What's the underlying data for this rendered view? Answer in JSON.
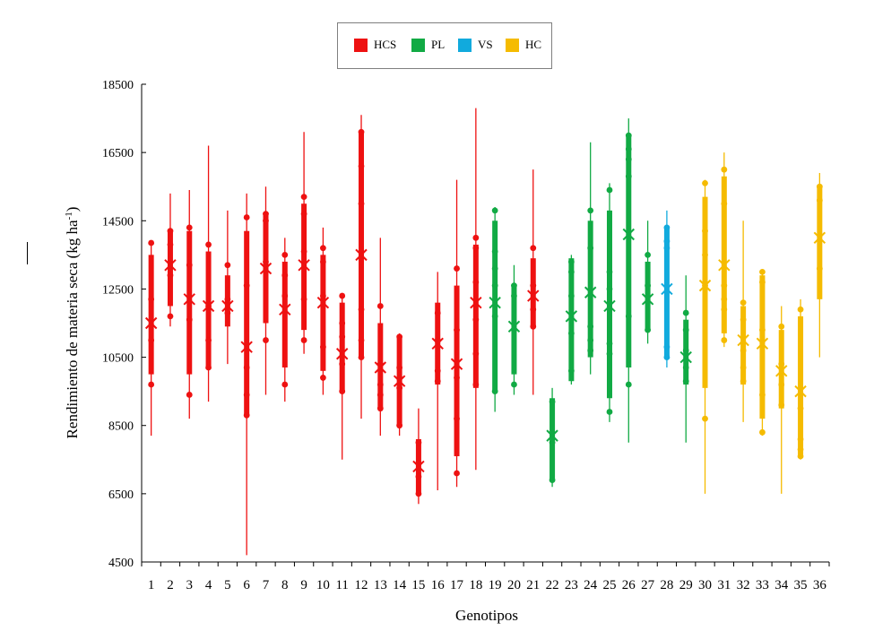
{
  "chart_data": {
    "type": "box",
    "xlabel": "Genotipos",
    "ylabel": "Rendimiento de materia seca (kg ha-1)",
    "ylabel_main": "Rendimiento de materia seca (kg ha",
    "ylabel_sup": "-1",
    "ylabel_close": ")",
    "ylim": [
      4500,
      18500
    ],
    "yticks": [
      4500,
      6500,
      8500,
      10500,
      12500,
      14500,
      16500,
      18500
    ],
    "legend": [
      {
        "name": "HCS",
        "color": "#ee1111"
      },
      {
        "name": "PL",
        "color": "#11aa44"
      },
      {
        "name": "VS",
        "color": "#11aadd"
      },
      {
        "name": "HC",
        "color": "#f5bb00"
      }
    ],
    "genotypes": [
      {
        "x": "1",
        "group": "HCS",
        "min": 8200,
        "q1": 10000,
        "q3": 13500,
        "max": 13900,
        "mean": 11500,
        "points": [
          13850,
          12200,
          11000,
          9700
        ]
      },
      {
        "x": "2",
        "group": "HCS",
        "min": 11400,
        "q1": 12000,
        "q3": 14200,
        "max": 15300,
        "mean": 13200,
        "points": [
          14200,
          13800,
          12900,
          11700
        ]
      },
      {
        "x": "3",
        "group": "HCS",
        "min": 8700,
        "q1": 10000,
        "q3": 14200,
        "max": 15400,
        "mean": 12200,
        "points": [
          14300,
          13200,
          11600,
          9400
        ]
      },
      {
        "x": "4",
        "group": "HCS",
        "min": 9200,
        "q1": 10200,
        "q3": 13600,
        "max": 16700,
        "mean": 12000,
        "points": [
          13800,
          12000,
          11000,
          10200
        ]
      },
      {
        "x": "5",
        "group": "HCS",
        "min": 10300,
        "q1": 11400,
        "q3": 12900,
        "max": 14800,
        "mean": 12000,
        "points": [
          13200,
          12200,
          11800
        ]
      },
      {
        "x": "6",
        "group": "HCS",
        "min": 4700,
        "q1": 8800,
        "q3": 14200,
        "max": 15300,
        "mean": 10800,
        "points": [
          14600,
          12600,
          10200,
          9400,
          8800
        ]
      },
      {
        "x": "7",
        "group": "HCS",
        "min": 9400,
        "q1": 11500,
        "q3": 14700,
        "max": 15500,
        "mean": 13100,
        "points": [
          14700,
          14500,
          13300,
          11000
        ]
      },
      {
        "x": "8",
        "group": "HCS",
        "min": 9200,
        "q1": 10200,
        "q3": 13300,
        "max": 14000,
        "mean": 11900,
        "points": [
          13500,
          12900,
          12300,
          9700
        ]
      },
      {
        "x": "9",
        "group": "HCS",
        "min": 10600,
        "q1": 11300,
        "q3": 15000,
        "max": 17100,
        "mean": 13200,
        "points": [
          15200,
          14700,
          13600,
          12200,
          11000
        ]
      },
      {
        "x": "10",
        "group": "HCS",
        "min": 9400,
        "q1": 10100,
        "q3": 13500,
        "max": 14300,
        "mean": 12100,
        "points": [
          13700,
          13300,
          12300,
          10800,
          9900
        ]
      },
      {
        "x": "11",
        "group": "HCS",
        "min": 7500,
        "q1": 9500,
        "q3": 12100,
        "max": 12300,
        "mean": 10600,
        "points": [
          12300,
          11500,
          11100,
          10300,
          9500
        ]
      },
      {
        "x": "12",
        "group": "HCS",
        "min": 8700,
        "q1": 10500,
        "q3": 17100,
        "max": 17600,
        "mean": 13500,
        "points": [
          17100,
          16100,
          15000,
          11900,
          11000,
          10500
        ]
      },
      {
        "x": "13",
        "group": "HCS",
        "min": 8200,
        "q1": 9000,
        "q3": 11500,
        "max": 14000,
        "mean": 10200,
        "points": [
          12000,
          10300,
          9700,
          9400,
          9000
        ]
      },
      {
        "x": "14",
        "group": "HCS",
        "min": 8200,
        "q1": 8500,
        "q3": 11100,
        "max": 11200,
        "mean": 9800,
        "points": [
          11100,
          10200,
          9900,
          9600,
          8500
        ]
      },
      {
        "x": "15",
        "group": "HCS",
        "min": 6200,
        "q1": 6500,
        "q3": 8100,
        "max": 9000,
        "mean": 7300,
        "points": [
          8000,
          7400,
          7000,
          6500
        ]
      },
      {
        "x": "16",
        "group": "HCS",
        "min": 6600,
        "q1": 9700,
        "q3": 12100,
        "max": 13000,
        "mean": 10900,
        "points": [
          11800,
          11000,
          10100,
          9800
        ]
      },
      {
        "x": "17",
        "group": "HCS",
        "min": 6700,
        "q1": 7600,
        "q3": 12600,
        "max": 15700,
        "mean": 10300,
        "points": [
          13100,
          11300,
          9900,
          8700,
          7100
        ]
      },
      {
        "x": "18",
        "group": "HCS",
        "min": 7200,
        "q1": 9600,
        "q3": 13800,
        "max": 17800,
        "mean": 12100,
        "points": [
          14000,
          13700,
          12700,
          11600,
          10600,
          9700
        ]
      },
      {
        "x": "19",
        "group": "PL",
        "min": 8900,
        "q1": 9500,
        "q3": 14500,
        "max": 14900,
        "mean": 12100,
        "points": [
          14800,
          13600,
          13100,
          12600,
          11700,
          9500
        ]
      },
      {
        "x": "20",
        "group": "PL",
        "min": 9400,
        "q1": 10000,
        "q3": 12600,
        "max": 13200,
        "mean": 11400,
        "points": [
          12600,
          12300,
          11300,
          9700
        ]
      },
      {
        "x": "21",
        "group": "HCS",
        "min": 9400,
        "q1": 11400,
        "q3": 13400,
        "max": 16000,
        "mean": 12300,
        "points": [
          13700,
          12600,
          11900,
          11400
        ]
      },
      {
        "x": "22",
        "group": "PL",
        "min": 6700,
        "q1": 6900,
        "q3": 9300,
        "max": 9600,
        "mean": 8200,
        "points": [
          9200,
          8000,
          6900
        ]
      },
      {
        "x": "23",
        "group": "PL",
        "min": 9700,
        "q1": 9800,
        "q3": 13400,
        "max": 13500,
        "mean": 11700,
        "points": [
          13300,
          13000,
          12300,
          11200,
          10100
        ]
      },
      {
        "x": "24",
        "group": "PL",
        "min": 10000,
        "q1": 10500,
        "q3": 14500,
        "max": 16800,
        "mean": 12400,
        "points": [
          14800,
          13700,
          11400,
          11000,
          10700
        ]
      },
      {
        "x": "25",
        "group": "PL",
        "min": 8600,
        "q1": 9300,
        "q3": 14800,
        "max": 15600,
        "mean": 12000,
        "points": [
          15400,
          13000,
          12500,
          10900,
          10600,
          8900
        ]
      },
      {
        "x": "26",
        "group": "PL",
        "min": 8000,
        "q1": 10200,
        "q3": 17000,
        "max": 17500,
        "mean": 14100,
        "points": [
          17000,
          16600,
          16300,
          15800,
          11700,
          9700
        ]
      },
      {
        "x": "27",
        "group": "PL",
        "min": 10900,
        "q1": 11300,
        "q3": 13300,
        "max": 14500,
        "mean": 12200,
        "points": [
          13500,
          12600,
          11300
        ]
      },
      {
        "x": "28",
        "group": "VS",
        "min": 10200,
        "q1": 10500,
        "q3": 14300,
        "max": 14800,
        "mean": 12500,
        "points": [
          14300,
          13900,
          13700,
          10800,
          10500
        ]
      },
      {
        "x": "29",
        "group": "PL",
        "min": 8000,
        "q1": 9700,
        "q3": 11600,
        "max": 12900,
        "mean": 10500,
        "points": [
          11800,
          11300,
          10700,
          10200,
          9800
        ]
      },
      {
        "x": "30",
        "group": "HC",
        "min": 6500,
        "q1": 9600,
        "q3": 15200,
        "max": 15700,
        "mean": 12600,
        "points": [
          15600,
          14200,
          13500,
          12600,
          8700
        ]
      },
      {
        "x": "31",
        "group": "HC",
        "min": 10800,
        "q1": 11200,
        "q3": 15800,
        "max": 16500,
        "mean": 13200,
        "points": [
          16000,
          15000,
          12600,
          12200,
          11900,
          11000
        ]
      },
      {
        "x": "32",
        "group": "HC",
        "min": 8600,
        "q1": 9700,
        "q3": 12000,
        "max": 14500,
        "mean": 11000,
        "points": [
          12100,
          11600,
          10700,
          10200,
          9800
        ]
      },
      {
        "x": "33",
        "group": "HC",
        "min": 8200,
        "q1": 8700,
        "q3": 12900,
        "max": 13000,
        "mean": 10900,
        "points": [
          13000,
          12700,
          11300,
          9400,
          8300
        ]
      },
      {
        "x": "34",
        "group": "HC",
        "min": 6500,
        "q1": 9000,
        "q3": 11300,
        "max": 12000,
        "mean": 10100,
        "points": [
          11400,
          10300,
          9700,
          9100
        ]
      },
      {
        "x": "35",
        "group": "HC",
        "min": 7500,
        "q1": 7600,
        "q3": 11700,
        "max": 12200,
        "mean": 9500,
        "points": [
          11900,
          9000,
          8100,
          7800,
          7600
        ]
      },
      {
        "x": "36",
        "group": "HC",
        "min": 10500,
        "q1": 12200,
        "q3": 15500,
        "max": 15900,
        "mean": 14000,
        "points": [
          15500,
          15100,
          13100
        ]
      }
    ]
  }
}
